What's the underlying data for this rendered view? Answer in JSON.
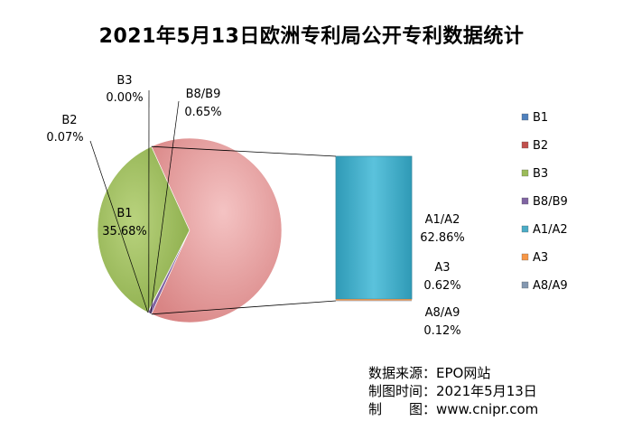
{
  "chart_data": {
    "type": "pie",
    "title": "2021年5月13日欧洲专利局公开专利数据统计",
    "main_slices": [
      {
        "key": "B1",
        "label_name": "B1",
        "value": 35.68,
        "value_label": "35.68%",
        "color": "#9bbb59"
      },
      {
        "key": "B2",
        "label_name": "B2",
        "value": 0.07,
        "value_label": "0.07%",
        "color": "#c0504d"
      },
      {
        "key": "B3",
        "label_name": "B3",
        "value": 0.0,
        "value_label": "0.00%",
        "color": "#9bbb59"
      },
      {
        "key": "B8B9",
        "label_name": "B8/B9",
        "value": 0.65,
        "value_label": "0.65%",
        "color": "#8064a2"
      },
      {
        "key": "A",
        "value": 63.6,
        "color": "#e6999a"
      }
    ],
    "bar_segments": [
      {
        "key": "A1A2",
        "label_name": "A1/A2",
        "value": 62.86,
        "value_label": "62.86%",
        "color": "#4bacc6"
      },
      {
        "key": "A3",
        "label_name": "A3",
        "value": 0.62,
        "value_label": "0.62%",
        "color": "#f79646"
      },
      {
        "key": "A8A9",
        "label_name": "A8/A9",
        "value": 0.12,
        "value_label": "0.12%",
        "color": "#8497b0"
      }
    ],
    "legend": [
      {
        "label": "B1",
        "color": "#4f81bd"
      },
      {
        "label": "B2",
        "color": "#c0504d"
      },
      {
        "label": "B3",
        "color": "#9bbb59"
      },
      {
        "label": "B8/B9",
        "color": "#8064a2"
      },
      {
        "label": "A1/A2",
        "color": "#4bacc6"
      },
      {
        "label": "A3",
        "color": "#f79646"
      },
      {
        "label": "A8/A9",
        "color": "#8497b0"
      }
    ],
    "legend_position": "right"
  },
  "source_lines": [
    "数据来源：EPO网站",
    "制图时间：2021年5月13日",
    "制　　图：www.cnipr.com"
  ]
}
